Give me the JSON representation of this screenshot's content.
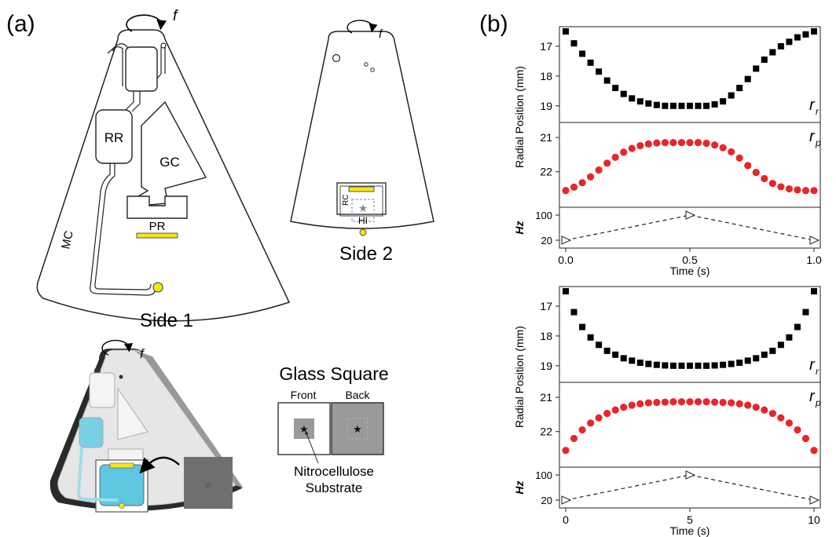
{
  "panel_a": {
    "label": "(a)",
    "rotation_symbol": "f",
    "side1": {
      "caption": "Side 1",
      "labels": {
        "rr": "RR",
        "gc": "GC",
        "pr": "PR",
        "mc": "MC"
      }
    },
    "side2": {
      "caption": "Side 2",
      "labels": {
        "rc": "RC",
        "hi": "HI"
      }
    },
    "glass_square": {
      "title": "Glass Square",
      "front": "Front",
      "back": "Back",
      "substrate_line1": "Nitrocellulose",
      "substrate_line2": "Substrate"
    }
  },
  "panel_b": {
    "label": "(b)",
    "y_label": "Radial Position (mm)",
    "hz_label": "Hz",
    "x_label": "Time (s)",
    "series_r_label": "r",
    "series_r_sub": "r",
    "series_p_label": "r",
    "series_p_sub": "p"
  },
  "chart_data": [
    {
      "type": "scatter",
      "subplot": "top-radial",
      "xlabel": "Time (s)",
      "ylabel": "Radial Position (mm)",
      "xlim": [
        0,
        1
      ],
      "xticks": [
        "0.0",
        "0.5",
        "1.0"
      ],
      "series": [
        {
          "name": "r_r",
          "color": "#000000",
          "marker": "square",
          "ylim": [
            16.5,
            19.4
          ],
          "yticks": [
            17,
            18,
            19
          ],
          "x": [
            0.0,
            0.0333,
            0.0667,
            0.1,
            0.1333,
            0.1667,
            0.2,
            0.2333,
            0.2667,
            0.3,
            0.3333,
            0.3667,
            0.4,
            0.4333,
            0.4667,
            0.5,
            0.5333,
            0.5667,
            0.6,
            0.6333,
            0.6667,
            0.7,
            0.7333,
            0.7667,
            0.8,
            0.8333,
            0.8667,
            0.9,
            0.9333,
            0.9667,
            1.0
          ],
          "y": [
            16.5,
            16.9,
            17.25,
            17.55,
            17.85,
            18.15,
            18.4,
            18.6,
            18.75,
            18.85,
            18.92,
            18.97,
            19.0,
            19.0,
            19.0,
            19.0,
            19.0,
            19.0,
            18.95,
            18.85,
            18.65,
            18.4,
            18.1,
            17.75,
            17.45,
            17.2,
            17.0,
            16.85,
            16.7,
            16.6,
            16.5
          ]
        },
        {
          "name": "r_p",
          "color": "#e8262a",
          "marker": "circle",
          "ylim": [
            20.7,
            22.9
          ],
          "yticks": [
            21,
            22
          ],
          "x": [
            0.0,
            0.0333,
            0.0667,
            0.1,
            0.1333,
            0.1667,
            0.2,
            0.2333,
            0.2667,
            0.3,
            0.3333,
            0.3667,
            0.4,
            0.4333,
            0.4667,
            0.5,
            0.5333,
            0.5667,
            0.6,
            0.6333,
            0.6667,
            0.7,
            0.7333,
            0.7667,
            0.8,
            0.8333,
            0.8667,
            0.9,
            0.9333,
            0.9667,
            1.0
          ],
          "y": [
            22.55,
            22.45,
            22.32,
            22.15,
            21.95,
            21.75,
            21.58,
            21.43,
            21.32,
            21.24,
            21.19,
            21.16,
            21.15,
            21.15,
            21.15,
            21.15,
            21.15,
            21.17,
            21.22,
            21.3,
            21.42,
            21.6,
            21.82,
            22.02,
            22.2,
            22.34,
            22.44,
            22.5,
            22.53,
            22.55,
            22.55
          ]
        }
      ]
    },
    {
      "type": "line",
      "subplot": "top-hz",
      "xlabel": "Time (s)",
      "ylabel": "Hz",
      "xlim": [
        0,
        1
      ],
      "ylim": [
        5,
        115
      ],
      "yticks": [
        20,
        100
      ],
      "series": [
        {
          "name": "f",
          "marker": "triangle",
          "dashed": true,
          "x": [
            0.0,
            0.5,
            1.0
          ],
          "y": [
            20,
            100,
            20
          ]
        }
      ]
    },
    {
      "type": "scatter",
      "subplot": "bottom-radial",
      "xlabel": "Time (s)",
      "ylabel": "Radial Position (mm)",
      "xlim": [
        0,
        10
      ],
      "xticks": [
        "0",
        "5",
        "10"
      ],
      "series": [
        {
          "name": "r_r",
          "color": "#000000",
          "marker": "square",
          "ylim": [
            16.5,
            19.4
          ],
          "yticks": [
            17,
            18,
            19
          ],
          "x": [
            0.0,
            0.3333,
            0.6667,
            1.0,
            1.3333,
            1.6667,
            2.0,
            2.3333,
            2.6667,
            3.0,
            3.3333,
            3.6667,
            4.0,
            4.3333,
            4.6667,
            5.0,
            5.3333,
            5.6667,
            6.0,
            6.3333,
            6.6667,
            7.0,
            7.3333,
            7.6667,
            8.0,
            8.3333,
            8.6667,
            9.0,
            9.3333,
            9.6667,
            10.0
          ],
          "y": [
            16.5,
            17.2,
            17.7,
            18.05,
            18.3,
            18.5,
            18.63,
            18.75,
            18.83,
            18.9,
            18.94,
            18.97,
            18.99,
            19.0,
            19.0,
            19.0,
            19.0,
            19.0,
            18.99,
            18.97,
            18.94,
            18.9,
            18.83,
            18.75,
            18.63,
            18.5,
            18.3,
            18.05,
            17.7,
            17.2,
            16.5
          ]
        },
        {
          "name": "r_p",
          "color": "#e8262a",
          "marker": "circle",
          "ylim": [
            20.7,
            22.9
          ],
          "yticks": [
            21,
            22
          ],
          "x": [
            0.0,
            0.3333,
            0.6667,
            1.0,
            1.3333,
            1.6667,
            2.0,
            2.3333,
            2.6667,
            3.0,
            3.3333,
            3.6667,
            4.0,
            4.3333,
            4.6667,
            5.0,
            5.3333,
            5.6667,
            6.0,
            6.3333,
            6.6667,
            7.0,
            7.3333,
            7.6667,
            8.0,
            8.3333,
            8.6667,
            9.0,
            9.3333,
            9.6667,
            10.0
          ],
          "y": [
            22.55,
            22.2,
            21.95,
            21.75,
            21.6,
            21.47,
            21.37,
            21.29,
            21.23,
            21.19,
            21.16,
            21.15,
            21.14,
            21.13,
            21.13,
            21.13,
            21.13,
            21.13,
            21.14,
            21.15,
            21.16,
            21.19,
            21.23,
            21.29,
            21.37,
            21.47,
            21.6,
            21.75,
            21.95,
            22.2,
            22.55
          ]
        }
      ]
    },
    {
      "type": "line",
      "subplot": "bottom-hz",
      "xlabel": "Time (s)",
      "ylabel": "Hz",
      "xlim": [
        0,
        10
      ],
      "ylim": [
        5,
        115
      ],
      "yticks": [
        20,
        100
      ],
      "series": [
        {
          "name": "f",
          "marker": "triangle",
          "dashed": true,
          "x": [
            0,
            5,
            10
          ],
          "y": [
            20,
            100,
            20
          ]
        }
      ]
    }
  ]
}
